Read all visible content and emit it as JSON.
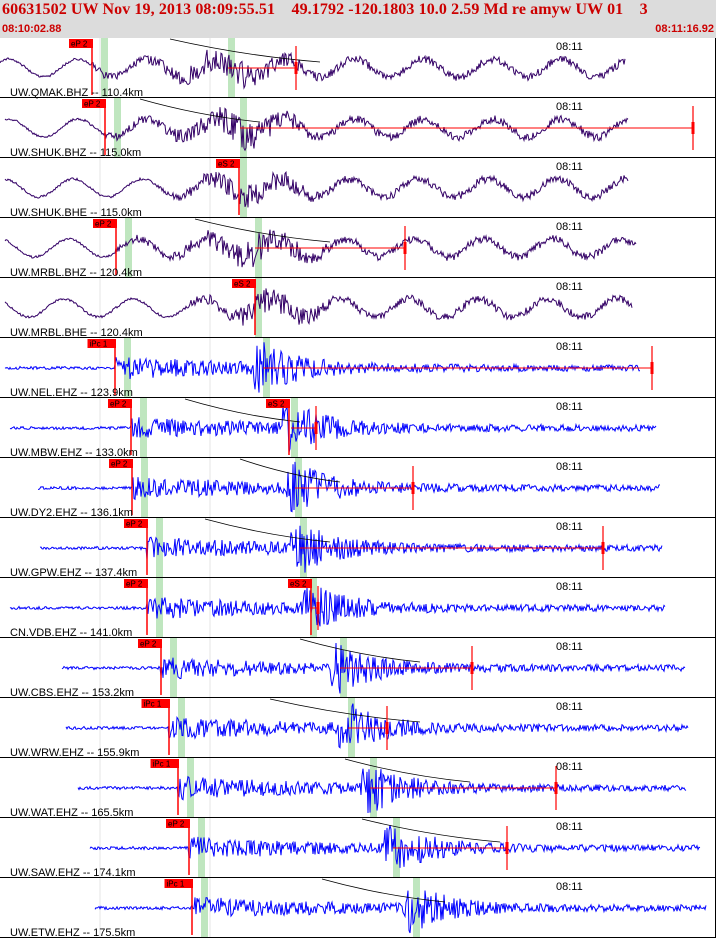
{
  "header": {
    "title": "60631502 UW Nov 19, 2013 08:09:55.51    49.1792 -120.1803 10.0 2.59 Md re amyw UW 01    3",
    "start_time": "08:10:02.88",
    "end_time": "08:11:16.92"
  },
  "colors": {
    "header_bg": "#dcdcdc",
    "title": "#cc0000",
    "trace_short_period": "#0000ff",
    "trace_broadband": "#330066",
    "pick_box": "#ff0000",
    "pick_band": "#bfe6bf",
    "travel_time_curve": "#000000"
  },
  "chart_data": {
    "type": "line",
    "minute_label": "08:11",
    "traces": [
      {
        "label": "UW.QMAK.BHZ -- 110.4km",
        "channel": "BHZ",
        "p_pick": "eP 2",
        "s_pick": ""
      },
      {
        "label": "UW.SHUK.BHZ -- 115.0km",
        "channel": "BHZ",
        "p_pick": "eP 2",
        "s_pick": ""
      },
      {
        "label": "UW.SHUK.BHE -- 115.0km",
        "channel": "BHE",
        "p_pick": "",
        "s_pick": "eS 2"
      },
      {
        "label": "UW.MRBL.BHZ -- 120.4km",
        "channel": "BHZ",
        "p_pick": "eP 2",
        "s_pick": ""
      },
      {
        "label": "UW.MRBL.BHE -- 120.4km",
        "channel": "BHE",
        "p_pick": "",
        "s_pick": "eS 2"
      },
      {
        "label": "UW.NEL.EHZ -- 123.9km",
        "channel": "EHZ",
        "p_pick": "iPc 1",
        "s_pick": ""
      },
      {
        "label": "UW.MBW.EHZ -- 133.0km",
        "channel": "EHZ",
        "p_pick": "eP 2",
        "s_pick": "eS 2"
      },
      {
        "label": "UW.DY2.EHZ -- 136.1km",
        "channel": "EHZ",
        "p_pick": "eP 2",
        "s_pick": ""
      },
      {
        "label": "UW.GPW.EHZ -- 137.4km",
        "channel": "EHZ",
        "p_pick": "eP 2",
        "s_pick": ""
      },
      {
        "label": "CN.VDB.EHZ -- 141.0km",
        "channel": "EHZ",
        "p_pick": "eP 2",
        "s_pick": "eS 2"
      },
      {
        "label": "UW.CBS.EHZ -- 153.2km",
        "channel": "EHZ",
        "p_pick": "eP 2",
        "s_pick": ""
      },
      {
        "label": "UW.WRW.EHZ -- 155.9km",
        "channel": "EHZ",
        "p_pick": "iPc 1",
        "s_pick": ""
      },
      {
        "label": "UW.WAT.EHZ -- 165.5km",
        "channel": "EHZ",
        "p_pick": "iPc 1",
        "s_pick": ""
      },
      {
        "label": "UW.SAW.EHZ -- 174.1km",
        "channel": "EHZ",
        "p_pick": "eP 2",
        "s_pick": ""
      },
      {
        "label": "UW.ETW.EHZ -- 175.5km",
        "channel": "EHZ",
        "p_pick": "iPc 1",
        "s_pick": ""
      }
    ]
  }
}
